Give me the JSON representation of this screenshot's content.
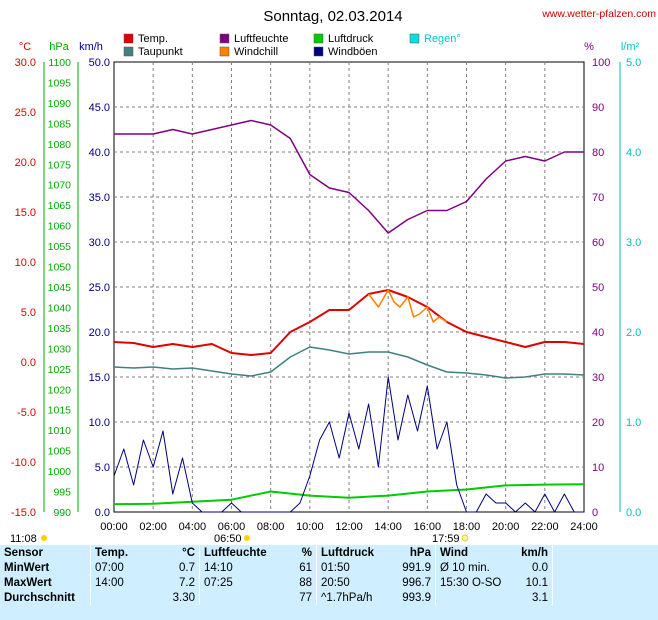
{
  "title": "Sonntag, 02.03.2014",
  "website": "www.wetter-pfalzen.com",
  "units": {
    "temp": "°C",
    "pressure": "hPa",
    "wind": "km/h",
    "humidity": "%",
    "rain": "l/m²"
  },
  "legend": [
    {
      "label": "Temp.",
      "color": "#e00000"
    },
    {
      "label": "Luftfeuchte",
      "color": "#800080"
    },
    {
      "label": "Luftdruck",
      "color": "#00cc00"
    },
    {
      "label": "Regen°",
      "color": "#00e0e0"
    },
    {
      "label": "Taupunkt",
      "color": "#408080"
    },
    {
      "label": "Windchill",
      "color": "#ff8000"
    },
    {
      "label": "Windböen",
      "color": "#000080"
    }
  ],
  "sun": {
    "rise_label": "06:50",
    "set_label": "17:59",
    "moon_label": "11:08"
  },
  "chart_data": {
    "type": "line",
    "x_ticks": [
      "00:00",
      "02:00",
      "04:00",
      "06:00",
      "08:00",
      "10:00",
      "12:00",
      "14:00",
      "16:00",
      "18:00",
      "20:00",
      "22:00",
      "24:00"
    ],
    "axes": {
      "temp": {
        "range": [
          -15,
          30
        ],
        "ticks": [
          "30.0",
          "25.0",
          "20.0",
          "15.0",
          "10.0",
          "5.0",
          "0.0",
          "-5.0",
          "-10.0",
          "-15.0"
        ],
        "color": "#e00000"
      },
      "pressure": {
        "range": [
          990,
          1100
        ],
        "ticks": [
          "1100",
          "1095",
          "1090",
          "1085",
          "1080",
          "1075",
          "1070",
          "1065",
          "1060",
          "1055",
          "1050",
          "1045",
          "1040",
          "1035",
          "1030",
          "1025",
          "1020",
          "1015",
          "1010",
          "1005",
          "1000",
          "995",
          "990"
        ],
        "color": "#00aa00"
      },
      "wind": {
        "range": [
          0,
          50
        ],
        "ticks": [
          "50.0",
          "45.0",
          "40.0",
          "35.0",
          "30.0",
          "25.0",
          "20.0",
          "15.0",
          "10.0",
          "5.0",
          "0.0"
        ],
        "color": "#000080"
      },
      "humidity": {
        "range": [
          0,
          100
        ],
        "ticks": [
          "100",
          "90",
          "80",
          "70",
          "60",
          "50",
          "40",
          "30",
          "20",
          "10",
          "0"
        ],
        "color": "#800080"
      },
      "rain": {
        "range": [
          0,
          5
        ],
        "ticks": [
          "5.0",
          "4.0",
          "3.0",
          "2.0",
          "1.0",
          "0.0"
        ],
        "color": "#00c0c0"
      }
    },
    "series": [
      {
        "name": "Temp.",
        "axis": "temp",
        "color": "#e00000",
        "x": [
          0,
          1,
          2,
          3,
          4,
          5,
          6,
          7,
          8,
          9,
          10,
          11,
          12,
          13,
          14,
          15,
          16,
          17,
          18,
          19,
          20,
          21,
          22,
          23,
          24
        ],
        "y": [
          2.0,
          1.9,
          1.5,
          1.8,
          1.5,
          1.8,
          0.9,
          0.7,
          0.9,
          3.0,
          4.0,
          5.2,
          5.2,
          6.8,
          7.2,
          6.5,
          5.5,
          4.0,
          3.0,
          2.5,
          2.0,
          1.5,
          2.0,
          2.0,
          1.8
        ]
      },
      {
        "name": "Taupunkt",
        "axis": "temp",
        "color": "#408080",
        "x": [
          0,
          1,
          2,
          3,
          4,
          5,
          6,
          7,
          8,
          9,
          10,
          11,
          12,
          13,
          14,
          15,
          16,
          17,
          18,
          19,
          20,
          21,
          22,
          23,
          24
        ],
        "y": [
          -0.5,
          -0.6,
          -0.5,
          -0.7,
          -0.6,
          -0.9,
          -1.2,
          -1.4,
          -1.0,
          0.5,
          1.5,
          1.2,
          0.8,
          1.0,
          1.0,
          0.5,
          -0.3,
          -1.0,
          -1.1,
          -1.3,
          -1.6,
          -1.5,
          -1.2,
          -1.2,
          -1.3
        ]
      },
      {
        "name": "Windchill",
        "axis": "temp",
        "color": "#ff8000",
        "x": [
          13,
          13.5,
          14,
          14.3,
          14.6,
          15,
          15.3,
          15.6,
          16,
          16.3,
          16.6,
          17
        ],
        "y": [
          6.8,
          5.5,
          7.2,
          6.0,
          5.5,
          6.5,
          4.5,
          4.8,
          5.5,
          4.0,
          4.5,
          4.0
        ]
      },
      {
        "name": "Luftfeuchte",
        "axis": "humidity",
        "color": "#800080",
        "x": [
          0,
          1,
          2,
          3,
          4,
          5,
          6,
          7,
          8,
          9,
          10,
          11,
          12,
          13,
          14,
          15,
          16,
          17,
          18,
          19,
          20,
          21,
          22,
          23,
          24
        ],
        "y": [
          84,
          84,
          84,
          85,
          84,
          85,
          86,
          87,
          86,
          83,
          75,
          72,
          71,
          67,
          62,
          65,
          67,
          67,
          69,
          74,
          78,
          79,
          78,
          80,
          80
        ]
      },
      {
        "name": "Luftdruck",
        "axis": "pressure",
        "color": "#00cc00",
        "x": [
          0,
          2,
          4,
          6,
          8,
          10,
          12,
          14,
          16,
          18,
          20,
          22,
          24
        ],
        "y": [
          991.9,
          992,
          992.5,
          993,
          995,
          994,
          993.5,
          994,
          995,
          995.5,
          996.5,
          996.7,
          996.8
        ]
      },
      {
        "name": "Windböen",
        "axis": "wind",
        "color": "#000080",
        "x": [
          0,
          0.5,
          1,
          1.5,
          2,
          2.5,
          3,
          3.5,
          4,
          4.5,
          5,
          5.5,
          6,
          6.5,
          7,
          7.5,
          8,
          8.5,
          9,
          9.5,
          10,
          10.5,
          11,
          11.5,
          12,
          12.5,
          13,
          13.5,
          14,
          14.5,
          15,
          15.5,
          16,
          16.5,
          17,
          17.5,
          18,
          18.5,
          19,
          19.5,
          20,
          20.5,
          21,
          21.5,
          22,
          22.5,
          23,
          23.5,
          24
        ],
        "y": [
          4,
          7,
          3,
          8,
          5,
          9,
          2,
          6,
          1,
          0,
          0,
          0,
          1,
          0,
          0,
          0,
          0,
          0,
          0,
          1,
          4,
          8,
          10,
          6,
          11,
          7,
          12,
          5,
          15,
          8,
          13,
          9,
          14,
          7,
          10,
          3,
          0,
          0,
          2,
          1,
          1,
          0,
          1,
          0,
          2,
          0,
          2,
          0,
          0
        ]
      }
    ]
  },
  "stats": {
    "header": [
      "Sensor",
      "Temp.",
      "°C",
      "Luftfeuchte",
      "%",
      "Luftdruck",
      "hPa",
      "Wind",
      "km/h"
    ],
    "rows": [
      [
        "MinWert",
        "07:00",
        "0.7",
        "14:10",
        "61",
        "01:50",
        "991.9",
        "Ø 10 min.",
        "0.0"
      ],
      [
        "MaxWert",
        "14:00",
        "7.2",
        "07:25",
        "88",
        "20:50",
        "996.7",
        "15:30   O-SO",
        "10.1"
      ],
      [
        "Durchschnitt",
        "",
        "3.30",
        "",
        "77",
        "^1.7hPa/h",
        "993.9",
        "",
        "3.1"
      ]
    ]
  }
}
